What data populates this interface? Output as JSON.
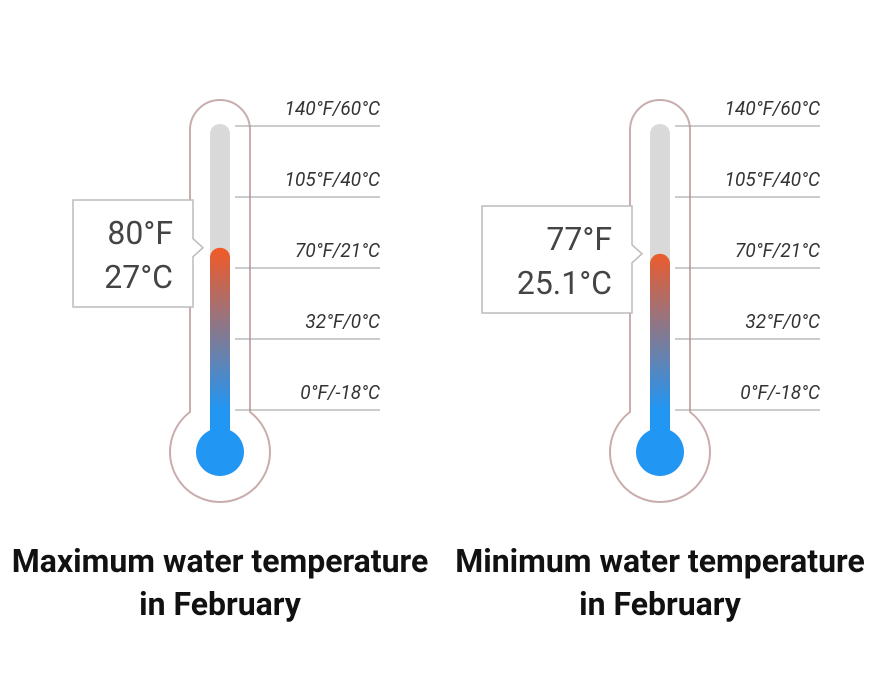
{
  "chart_data": [
    {
      "type": "thermometer",
      "title": "Maximum water temperature in February",
      "values": [
        80
      ],
      "value_labels": [
        "80°F"
      ],
      "secondary_labels": [
        "27°C"
      ],
      "ylim": [
        0,
        140
      ],
      "yticks": [
        {
          "value": 140,
          "label": "140°F/60°C"
        },
        {
          "value": 105,
          "label": "105°F/40°C"
        },
        {
          "value": 70,
          "label": "70°F/21°C"
        },
        {
          "value": 32,
          "label": "32°F/0°C"
        },
        {
          "value": 0,
          "label": "0°F/-18°C"
        }
      ],
      "colors": [
        "#f05a28",
        "#2196f3"
      ]
    },
    {
      "type": "thermometer",
      "title": "Minimum water temperature in February",
      "values": [
        77
      ],
      "value_labels": [
        "77°F"
      ],
      "secondary_labels": [
        "25.1°C"
      ],
      "ylim": [
        0,
        140
      ],
      "yticks": [
        {
          "value": 140,
          "label": "140°F/60°C"
        },
        {
          "value": 105,
          "label": "105°F/40°C"
        },
        {
          "value": 70,
          "label": "70°F/21°C"
        },
        {
          "value": 32,
          "label": "32°F/0°C"
        },
        {
          "value": 0,
          "label": "0°F/-18°C"
        }
      ],
      "colors": [
        "#f05a28",
        "#2196f3"
      ]
    }
  ]
}
